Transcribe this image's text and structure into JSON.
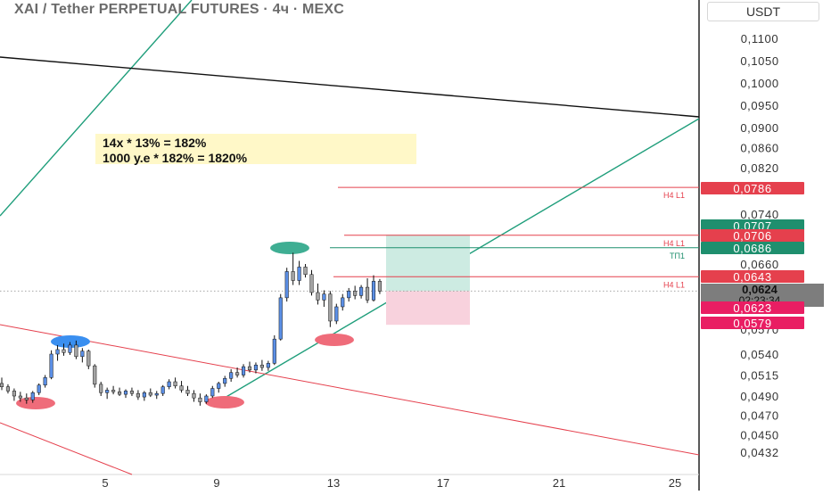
{
  "header": {
    "title": "XAI / Tether PERPETUAL FUTURES · 4ч · MEXC",
    "currency": "USDT"
  },
  "annotation": {
    "line1": "14x * 13% =  182%",
    "line2": "1000 y.e * 182% = 1820%"
  },
  "chart_data": {
    "type": "candlestick",
    "price_scale": {
      "ticks": [
        "0,1100",
        "0,1050",
        "0,1000",
        "0,0950",
        "0,0900",
        "0,0860",
        "0,0820",
        "0,0740",
        "0,0660",
        "0,0540",
        "0,0515",
        "0,0490",
        "0,0470",
        "0,0450",
        "0,0432"
      ],
      "tick_values": [
        0.11,
        0.105,
        0.1,
        0.095,
        0.09,
        0.086,
        0.082,
        0.074,
        0.066,
        0.054,
        0.0515,
        0.049,
        0.047,
        0.045,
        0.0432
      ]
    },
    "time_scale": {
      "labels": [
        "5",
        "9",
        "13",
        "17",
        "21",
        "25"
      ]
    },
    "price_badges": [
      {
        "label": "0,0786",
        "value": 0.0786,
        "color": "#e5404d"
      },
      {
        "label": "0,0707",
        "value": 0.0707,
        "color": "#1f8f6e"
      },
      {
        "label": "0,0706",
        "value": 0.0706,
        "color": "#e5404d"
      },
      {
        "label": "0,0686",
        "value": 0.0686,
        "color": "#1f8f6e"
      },
      {
        "label": "0,0643",
        "value": 0.0643,
        "color": "#e5404d"
      },
      {
        "label": "0,0624",
        "sub": "02:23:34",
        "value": 0.0624,
        "color": "#7d7d7d"
      },
      {
        "label": "0,0623",
        "value": 0.0623,
        "color": "#e91e63"
      },
      {
        "label": "0,0579",
        "value": 0.0579,
        "color": "#e91e63"
      }
    ],
    "partial_tick": "0,0570",
    "levels": [
      {
        "label": "H4 L1",
        "value": 0.0786,
        "color": "#e5404d"
      },
      {
        "label": "H4 L1",
        "value": 0.0706,
        "color": "#e5404d"
      },
      {
        "label": "ТП1",
        "value": 0.0686,
        "color": "#1f8f6e"
      },
      {
        "label": "H4 L1",
        "value": 0.0643,
        "color": "#e5404d"
      }
    ],
    "current_price": 0.0624,
    "position": {
      "entry": 0.0624,
      "target": 0.0707,
      "stop": 0.0579
    },
    "candles": [
      [
        0.0505,
        0.0512,
        0.0497,
        0.0501
      ],
      [
        0.0501,
        0.0504,
        0.0493,
        0.0496
      ],
      [
        0.0496,
        0.0499,
        0.0485,
        0.049
      ],
      [
        0.049,
        0.0495,
        0.0484,
        0.0488
      ],
      [
        0.0488,
        0.0493,
        0.0482,
        0.0486
      ],
      [
        0.0486,
        0.0496,
        0.0483,
        0.0494
      ],
      [
        0.0494,
        0.0505,
        0.0491,
        0.0503
      ],
      [
        0.0503,
        0.0515,
        0.05,
        0.0512
      ],
      [
        0.0512,
        0.0545,
        0.051,
        0.054
      ],
      [
        0.054,
        0.0552,
        0.0532,
        0.0546
      ],
      [
        0.0546,
        0.0554,
        0.0538,
        0.0542
      ],
      [
        0.0542,
        0.0556,
        0.0539,
        0.0552
      ],
      [
        0.0552,
        0.0558,
        0.0534,
        0.0537
      ],
      [
        0.0537,
        0.0548,
        0.053,
        0.0544
      ],
      [
        0.0544,
        0.0546,
        0.0522,
        0.0526
      ],
      [
        0.0526,
        0.0528,
        0.05,
        0.0504
      ],
      [
        0.0504,
        0.0507,
        0.049,
        0.0494
      ],
      [
        0.0494,
        0.05,
        0.0487,
        0.0497
      ],
      [
        0.0497,
        0.0502,
        0.0492,
        0.0495
      ],
      [
        0.0495,
        0.05,
        0.049,
        0.0492
      ],
      [
        0.0492,
        0.0498,
        0.0488,
        0.0496
      ],
      [
        0.0496,
        0.05,
        0.049,
        0.0493
      ],
      [
        0.0493,
        0.0497,
        0.0486,
        0.0489
      ],
      [
        0.0489,
        0.0496,
        0.0485,
        0.0494
      ],
      [
        0.0494,
        0.0499,
        0.0489,
        0.0491
      ],
      [
        0.0491,
        0.0496,
        0.0487,
        0.0493
      ],
      [
        0.0493,
        0.0503,
        0.049,
        0.0501
      ],
      [
        0.0501,
        0.051,
        0.0498,
        0.0507
      ],
      [
        0.0507,
        0.0512,
        0.0499,
        0.0502
      ],
      [
        0.0502,
        0.0508,
        0.0494,
        0.0497
      ],
      [
        0.0497,
        0.0502,
        0.049,
        0.0493
      ],
      [
        0.0493,
        0.0497,
        0.0484,
        0.0488
      ],
      [
        0.0488,
        0.0493,
        0.048,
        0.0484
      ],
      [
        0.0484,
        0.0492,
        0.0482,
        0.049
      ],
      [
        0.049,
        0.0502,
        0.0488,
        0.0499
      ],
      [
        0.0499,
        0.0507,
        0.0494,
        0.0505
      ],
      [
        0.0505,
        0.0514,
        0.0501,
        0.0511
      ],
      [
        0.0511,
        0.0522,
        0.0507,
        0.0518
      ],
      [
        0.0518,
        0.0524,
        0.0512,
        0.0515
      ],
      [
        0.0515,
        0.0528,
        0.0512,
        0.0525
      ],
      [
        0.0525,
        0.0531,
        0.0518,
        0.0521
      ],
      [
        0.0521,
        0.053,
        0.0517,
        0.0527
      ],
      [
        0.0527,
        0.0533,
        0.052,
        0.0524
      ],
      [
        0.0524,
        0.0532,
        0.052,
        0.0529
      ],
      [
        0.0529,
        0.0565,
        0.0527,
        0.056
      ],
      [
        0.056,
        0.062,
        0.0558,
        0.0615
      ],
      [
        0.0615,
        0.0655,
        0.061,
        0.065
      ],
      [
        0.065,
        0.0678,
        0.0632,
        0.0638
      ],
      [
        0.0638,
        0.0665,
        0.0632,
        0.0656
      ],
      [
        0.0656,
        0.066,
        0.0642,
        0.0646
      ],
      [
        0.0646,
        0.0652,
        0.0618,
        0.0622
      ],
      [
        0.0622,
        0.0634,
        0.0606,
        0.0612
      ],
      [
        0.0612,
        0.0625,
        0.0603,
        0.062
      ],
      [
        0.062,
        0.0624,
        0.0576,
        0.0584
      ],
      [
        0.0584,
        0.0607,
        0.058,
        0.0603
      ],
      [
        0.0603,
        0.062,
        0.0598,
        0.0615
      ],
      [
        0.0615,
        0.0628,
        0.061,
        0.0624
      ],
      [
        0.0624,
        0.0631,
        0.0613,
        0.0618
      ],
      [
        0.0618,
        0.0632,
        0.0614,
        0.0629
      ],
      [
        0.0629,
        0.0641,
        0.0608,
        0.0612
      ],
      [
        0.0612,
        0.0645,
        0.061,
        0.0637
      ],
      [
        0.0637,
        0.064,
        0.062,
        0.0624
      ]
    ]
  },
  "colors": {
    "bullish": "#5b8fe6",
    "bearish": "#a3a3a3",
    "support_line": "#1f9e7b",
    "channel_line": "#e5404d",
    "resistance_line": "#111111",
    "target_zone": "#cdebe2",
    "stop_zone": "#f8d2dd",
    "pivot_high": "#3a8ff0",
    "pivot_low": "#ef6c7a",
    "pivot_top": "#3fae93"
  }
}
